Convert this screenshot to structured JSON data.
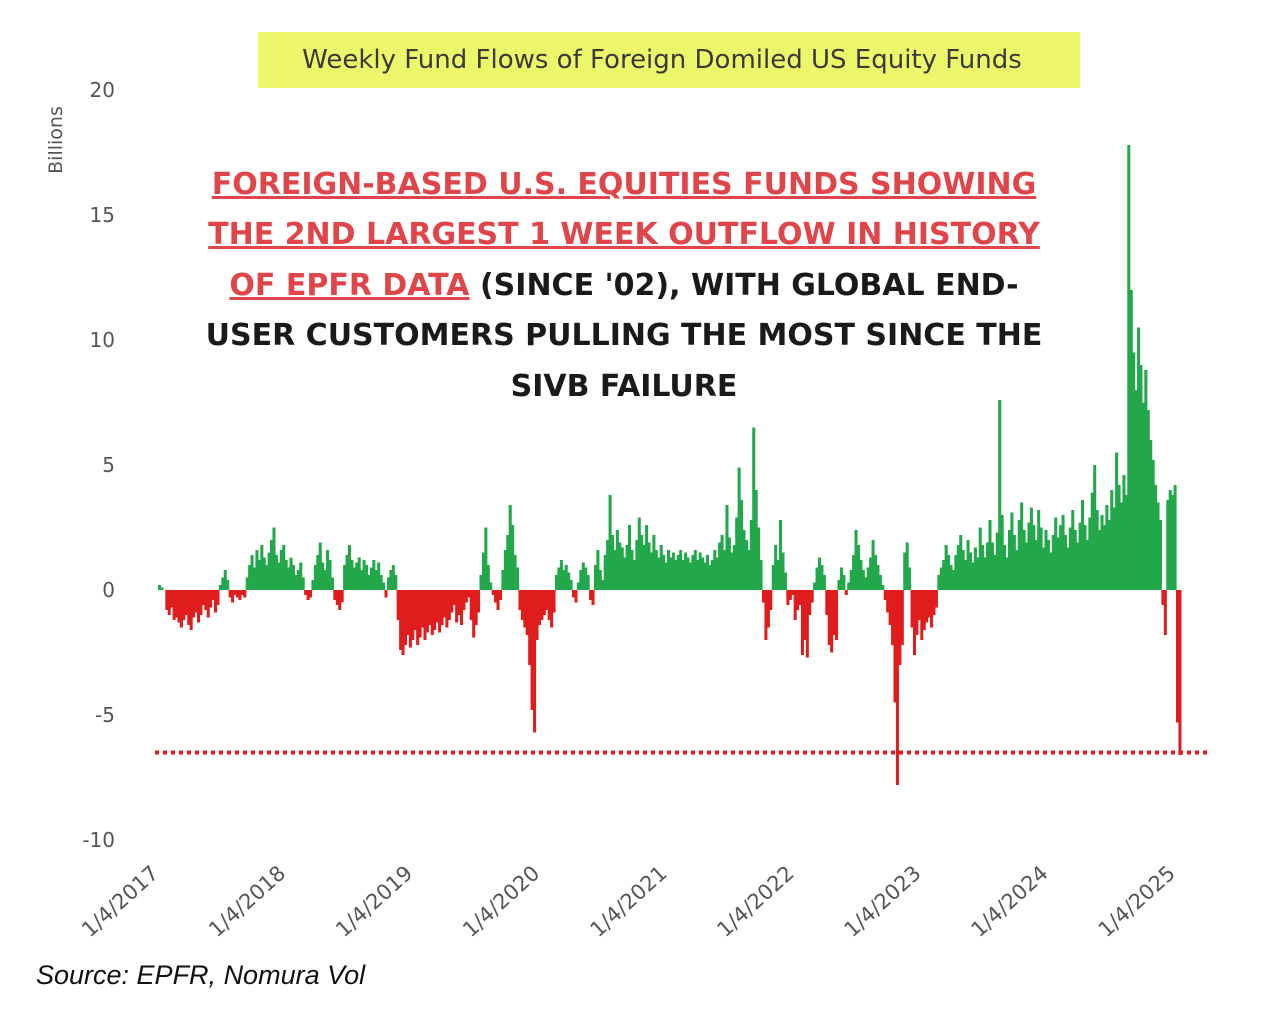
{
  "chart_data": {
    "type": "bar",
    "title": "Weekly Fund Flows of Foreign Domiled US Equity Funds",
    "ylabel": "Billions",
    "ylim": [
      -10,
      20
    ],
    "yticks": [
      20,
      15,
      10,
      5,
      0,
      -5,
      -10
    ],
    "xlim": [
      "2017-01-04",
      "2025-04-10"
    ],
    "xticks": [
      "1/4/2017",
      "1/4/2018",
      "1/4/2019",
      "1/4/2020",
      "1/4/2021",
      "1/4/2022",
      "1/4/2023",
      "1/4/2024",
      "1/4/2025"
    ],
    "grid": false,
    "legend": "none",
    "colors": {
      "inflow": "#22a84a",
      "outflow": "#e11c1c",
      "reference_line": "#e11c1c",
      "title_box": "#eef66a"
    },
    "reference_line": {
      "y": -6.5,
      "style": "dotted"
    },
    "annotation": {
      "underlined_red": [
        "FOREIGN-BASED U.S. EQUITIES FUNDS SHOWING",
        "THE 2ND LARGEST 1 WEEK OUTFLOW IN HISTORY",
        "OF EPFR DATA"
      ],
      "black": [
        " (SINCE '02), WITH GLOBAL END-",
        "USER CUSTOMERS PULLING THE MOST SINCE THE",
        "SIVB FAILURE"
      ]
    },
    "series": [
      {
        "x_start": "2017-01-04",
        "frequency": "weekly",
        "values": [
          0.2,
          0.1,
          0,
          -0.8,
          -1.0,
          -0.7,
          -1.2,
          -1.1,
          -1.3,
          -1.5,
          -1.2,
          -1.0,
          -1.4,
          -1.6,
          -1.1,
          -0.9,
          -1.3,
          -1.0,
          -0.6,
          -0.8,
          -1.1,
          -0.7,
          -0.4,
          -0.9,
          -0.6,
          0.2,
          0.5,
          0.8,
          0.4,
          -0.3,
          -0.5,
          -0.2,
          -0.3,
          -0.4,
          -0.2,
          -0.3,
          0.5,
          1.0,
          1.4,
          0.9,
          1.6,
          1.2,
          1.8,
          1.3,
          1.0,
          1.5,
          2.0,
          2.5,
          1.4,
          1.1,
          1.6,
          1.8,
          1.2,
          0.9,
          1.3,
          1.0,
          0.6,
          0.8,
          1.1,
          0.5,
          -0.2,
          -0.4,
          -0.3,
          0.4,
          1.0,
          1.4,
          1.9,
          1.1,
          0.8,
          1.6,
          1.2,
          0.5,
          -0.4,
          -0.6,
          -0.8,
          -0.5,
          1.0,
          1.4,
          1.8,
          1.2,
          0.9,
          1.1,
          1.3,
          0.8,
          1.2,
          1.0,
          0.6,
          0.9,
          1.2,
          0.8,
          1.1,
          0.6,
          0.3,
          -0.3,
          0.5,
          0.8,
          1.0,
          0.6,
          -1.2,
          -2.4,
          -2.6,
          -2.2,
          -1.8,
          -2.3,
          -2.0,
          -1.6,
          -2.2,
          -1.9,
          -1.5,
          -2.0,
          -1.7,
          -1.4,
          -1.8,
          -1.6,
          -1.3,
          -1.7,
          -1.4,
          -1.1,
          -1.5,
          -1.2,
          -0.9,
          -0.6,
          -1.3,
          -1.0,
          -1.4,
          -0.8,
          -0.5,
          -0.3,
          -1.2,
          -1.9,
          -1.4,
          -0.9,
          0.6,
          1.5,
          2.5,
          1.0,
          0.3,
          -0.2,
          -0.5,
          -0.8,
          -0.4,
          0.8,
          1.6,
          2.2,
          3.4,
          2.6,
          1.4,
          0.9,
          -0.8,
          -1.2,
          -1.5,
          -1.8,
          -3.0,
          -4.8,
          -5.7,
          -2.0,
          -1.4,
          -1.2,
          -1.0,
          -0.8,
          -1.2,
          -1.5,
          -0.9,
          0.6,
          0.9,
          1.2,
          0.8,
          1.0,
          0.7,
          0.4,
          -0.3,
          -0.5,
          0.3,
          0.8,
          1.1,
          0.9,
          0.6,
          -0.4,
          -0.6,
          1.0,
          1.6,
          0.8,
          0.4,
          1.4,
          2.0,
          3.8,
          2.2,
          1.6,
          2.4,
          1.9,
          1.7,
          1.3,
          1.8,
          2.6,
          1.6,
          1.2,
          2.0,
          2.9,
          2.2,
          1.8,
          2.6,
          1.9,
          1.5,
          2.2,
          1.6,
          1.3,
          1.8,
          1.4,
          1.1,
          1.6,
          1.3,
          1.5,
          1.2,
          1.4,
          1.6,
          1.2,
          1.5,
          1.3,
          1.1,
          1.4,
          1.6,
          1.2,
          1.5,
          1.3,
          1.1,
          1.4,
          1.0,
          1.2,
          1.6,
          1.3,
          1.9,
          2.2,
          1.6,
          3.4,
          2.1,
          1.5,
          1.8,
          2.9,
          4.9,
          3.6,
          2.4,
          2.0,
          1.6,
          2.8,
          6.5,
          4.0,
          2.5,
          1.2,
          -0.5,
          -2.0,
          -1.5,
          -0.8,
          1.0,
          1.8,
          1.2,
          2.8,
          1.5,
          0.7,
          -0.6,
          -0.4,
          -0.2,
          -1.2,
          -0.8,
          -0.6,
          -2.6,
          -2.0,
          -2.7,
          -1.0,
          -0.5,
          0.3,
          0.9,
          1.3,
          1.0,
          0.6,
          -1.0,
          -2.2,
          -2.5,
          -1.8,
          -2.0,
          0.4,
          0.9,
          0.6,
          -0.2,
          0.3,
          0.8,
          1.4,
          2.4,
          1.8,
          1.2,
          0.8,
          0.5,
          0.9,
          1.3,
          2.0,
          1.4,
          1.0,
          0.6,
          0.2,
          -0.4,
          -0.9,
          -1.4,
          -2.2,
          -4.5,
          -7.8,
          -3.0,
          -2.2,
          1.5,
          1.9,
          0.9,
          -1.5,
          -2.6,
          -1.8,
          -1.2,
          -2.0,
          -1.6,
          -1.3,
          -1.1,
          -1.5,
          -1.0,
          -0.7,
          0.6,
          0.9,
          1.2,
          1.8,
          1.4,
          1.0,
          0.8,
          1.4,
          1.8,
          2.2,
          1.6,
          1.2,
          2.0,
          1.5,
          1.1,
          1.7,
          1.3,
          2.5,
          1.8,
          1.3,
          1.9,
          2.8,
          1.9,
          1.4,
          2.3,
          7.6,
          3.0,
          1.8,
          1.3,
          2.4,
          3.1,
          2.2,
          1.6,
          2.8,
          3.5,
          2.4,
          1.9,
          2.7,
          3.3,
          2.6,
          2.0,
          3.2,
          2.5,
          1.7,
          2.4,
          2.0,
          1.5,
          2.2,
          2.9,
          2.1,
          2.6,
          3.0,
          2.2,
          1.7,
          2.5,
          3.2,
          2.4,
          1.9,
          2.7,
          3.6,
          2.6,
          2.0,
          2.9,
          3.9,
          5.0,
          3.2,
          2.4,
          3.0,
          2.6,
          3.4,
          2.8,
          4.0,
          3.3,
          5.5,
          4.2,
          3.5,
          4.6,
          3.8,
          17.8,
          12.0,
          9.5,
          8.0,
          10.5,
          9.0,
          7.5,
          8.8,
          7.2,
          6.0,
          5.2,
          4.2,
          3.5,
          2.8,
          -0.6,
          -1.8,
          3.6,
          4.0,
          3.8,
          4.2,
          -5.3,
          -6.6
        ]
      }
    ]
  },
  "source": "Source: EPFR, Nomura Vol"
}
